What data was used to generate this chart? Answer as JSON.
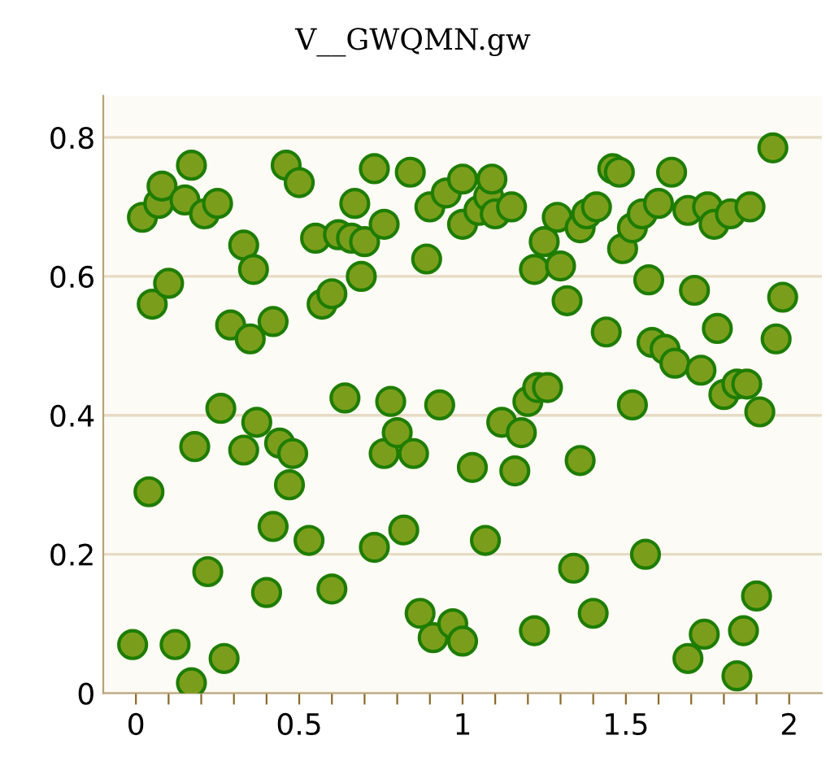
{
  "chart_data": {
    "type": "scatter",
    "title": "V__GWQMN.gw",
    "color": "#7a9e1c",
    "marker": "circle",
    "grid": "y",
    "x": [
      0.02,
      0.05,
      0.07,
      0.08,
      0.1,
      0.15,
      0.17,
      0.21,
      0.25,
      0.29,
      0.33,
      0.35,
      0.36,
      0.42,
      0.46,
      0.5,
      0.55,
      0.57,
      0.6,
      0.62,
      0.66,
      0.67,
      0.69,
      0.7,
      0.73,
      0.76,
      0.84,
      0.89,
      0.9,
      0.95,
      1.0,
      1.0,
      1.05,
      1.08,
      1.09,
      1.1,
      1.15,
      1.22,
      1.25,
      1.29,
      1.3,
      1.32,
      1.36,
      1.38,
      1.41,
      1.44,
      1.46,
      1.48,
      1.49,
      1.52,
      1.55,
      1.57,
      1.58,
      1.6,
      1.62,
      1.64,
      1.65,
      1.69,
      1.71,
      1.73,
      1.75,
      1.77,
      1.78,
      1.8,
      1.82,
      1.84,
      1.88,
      1.91,
      1.95,
      1.96,
      1.98,
      0.04,
      0.18,
      0.22,
      0.26,
      0.33,
      0.37,
      0.4,
      0.42,
      0.44,
      0.47,
      0.48,
      0.53,
      0.6,
      0.64,
      0.73,
      0.76,
      0.78,
      0.8,
      0.82,
      0.85,
      0.87,
      0.93,
      0.91,
      0.97,
      1.0,
      1.03,
      1.07,
      1.12,
      1.16,
      1.18,
      1.2,
      1.23,
      1.26,
      1.34,
      1.36,
      1.4,
      1.52,
      1.56,
      1.69,
      1.74,
      1.84,
      1.86,
      1.87,
      1.9,
      -0.01,
      0.12,
      0.17,
      0.27,
      1.22
    ],
    "values": [
      0.685,
      0.56,
      0.705,
      0.73,
      0.59,
      0.71,
      0.76,
      0.69,
      0.705,
      0.53,
      0.645,
      0.51,
      0.61,
      0.535,
      0.76,
      0.735,
      0.655,
      0.56,
      0.575,
      0.66,
      0.655,
      0.705,
      0.6,
      0.65,
      0.755,
      0.675,
      0.75,
      0.625,
      0.7,
      0.72,
      0.74,
      0.675,
      0.695,
      0.715,
      0.74,
      0.69,
      0.7,
      0.61,
      0.65,
      0.685,
      0.615,
      0.565,
      0.67,
      0.69,
      0.7,
      0.52,
      0.755,
      0.75,
      0.64,
      0.67,
      0.69,
      0.595,
      0.505,
      0.705,
      0.495,
      0.75,
      0.475,
      0.695,
      0.58,
      0.465,
      0.7,
      0.675,
      0.525,
      0.43,
      0.69,
      0.445,
      0.7,
      0.405,
      0.785,
      0.51,
      0.57,
      0.29,
      0.355,
      0.175,
      0.41,
      0.35,
      0.39,
      0.145,
      0.24,
      0.36,
      0.3,
      0.345,
      0.22,
      0.15,
      0.425,
      0.21,
      0.345,
      0.42,
      0.375,
      0.235,
      0.345,
      0.115,
      0.415,
      0.08,
      0.1,
      0.075,
      0.325,
      0.22,
      0.39,
      0.32,
      0.375,
      0.42,
      0.44,
      0.44,
      0.18,
      0.335,
      0.115,
      0.415,
      0.2,
      0.05,
      0.085,
      0.025,
      0.09,
      0.445,
      0.14,
      0.07,
      0.07,
      0.015,
      0.05,
      0.09
    ],
    "xlim": [
      -0.1,
      2.1
    ],
    "ylim": [
      0,
      0.86
    ],
    "xticks": [
      0,
      {
        "value": 0.1,
        "label": null
      },
      {
        "value": 0.2,
        "label": null
      },
      {
        "value": 0.3,
        "label": null
      },
      {
        "value": 0.4,
        "label": null
      },
      0.5,
      {
        "value": 0.6,
        "label": null
      },
      {
        "value": 0.7,
        "label": null
      },
      {
        "value": 0.8,
        "label": null
      },
      {
        "value": 0.9,
        "label": null
      },
      1,
      {
        "value": 1.1,
        "label": null
      },
      {
        "value": 1.2,
        "label": null
      },
      {
        "value": 1.3,
        "label": null
      },
      {
        "value": 1.4,
        "label": null
      },
      1.5,
      {
        "value": 1.6,
        "label": null
      },
      {
        "value": 1.7,
        "label": null
      },
      {
        "value": 1.8,
        "label": null
      },
      {
        "value": 1.9,
        "label": null
      },
      2
    ],
    "yticks": [
      0,
      0.2,
      0.4,
      0.6,
      0.8
    ]
  }
}
